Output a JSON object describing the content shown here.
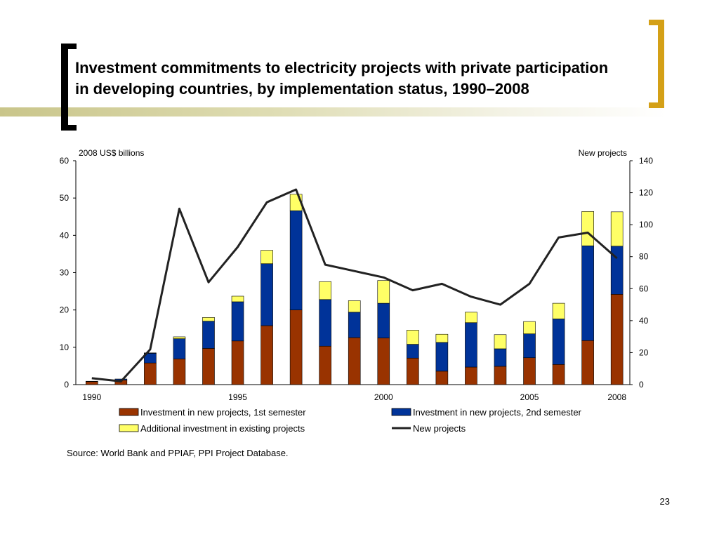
{
  "slide": {
    "title_line1": "Investment commitments to electricity projects with private participation",
    "title_line2": "in developing countries, by implementation status, 1990–2008",
    "source": "Source: World Bank and PPIAF, PPI Project Database.",
    "slide_number": "23"
  },
  "colors": {
    "bracket_left": "#000000",
    "bracket_right": "#d4a017",
    "band": "#c9c58a"
  },
  "chart_data": {
    "type": "bar",
    "stacked": true,
    "left_axis_label": "2008 US$ billions",
    "right_axis_label": "New projects",
    "ylim_left": [
      0,
      60
    ],
    "yticks_left": [
      0,
      10,
      20,
      30,
      40,
      50,
      60
    ],
    "ylim_right": [
      0,
      140
    ],
    "yticks_right": [
      0,
      20,
      40,
      60,
      80,
      100,
      120,
      140
    ],
    "grid": false,
    "legend_position": "bottom",
    "x": [
      1990,
      1991,
      1992,
      1993,
      1994,
      1995,
      1996,
      1997,
      1998,
      1999,
      2000,
      2001,
      2002,
      2003,
      2004,
      2005,
      2006,
      2007,
      2008
    ],
    "x_tick_labels": [
      "1990",
      "1995",
      "2000",
      "2005",
      "2008"
    ],
    "x_tick_years": [
      1990,
      1995,
      2000,
      2005,
      2008
    ],
    "series": [
      {
        "name": "Investment in new projects, 1st semester",
        "axis": "left",
        "kind": "bar",
        "color": "#993300",
        "values": [
          0.8,
          1.2,
          5.8,
          6.9,
          9.7,
          11.7,
          15.8,
          20.0,
          10.3,
          12.6,
          12.5,
          7.1,
          3.6,
          4.7,
          4.9,
          7.2,
          5.4,
          11.8,
          24.2
        ]
      },
      {
        "name": "Investment in new projects, 2nd semester",
        "axis": "left",
        "kind": "bar",
        "color": "#003399",
        "values": [
          0.1,
          0.3,
          2.6,
          5.4,
          7.3,
          10.5,
          16.6,
          26.6,
          12.5,
          6.8,
          9.3,
          3.7,
          7.7,
          11.9,
          4.7,
          6.4,
          12.2,
          25.4,
          12.9
        ]
      },
      {
        "name": "Additional investment in existing projects",
        "axis": "left",
        "kind": "bar",
        "color": "#ffff66",
        "values": [
          0.0,
          0.0,
          0.1,
          0.5,
          1.0,
          1.5,
          3.6,
          4.4,
          4.8,
          3.1,
          6.1,
          3.8,
          2.2,
          2.8,
          3.8,
          3.3,
          4.2,
          9.2,
          9.2
        ]
      },
      {
        "name": "New projects",
        "axis": "right",
        "kind": "line",
        "color": "#222222",
        "values": [
          4,
          2,
          22,
          110,
          64,
          86,
          114,
          122,
          75,
          71,
          67,
          59,
          63,
          55,
          50,
          63,
          92,
          95,
          79
        ]
      }
    ]
  }
}
